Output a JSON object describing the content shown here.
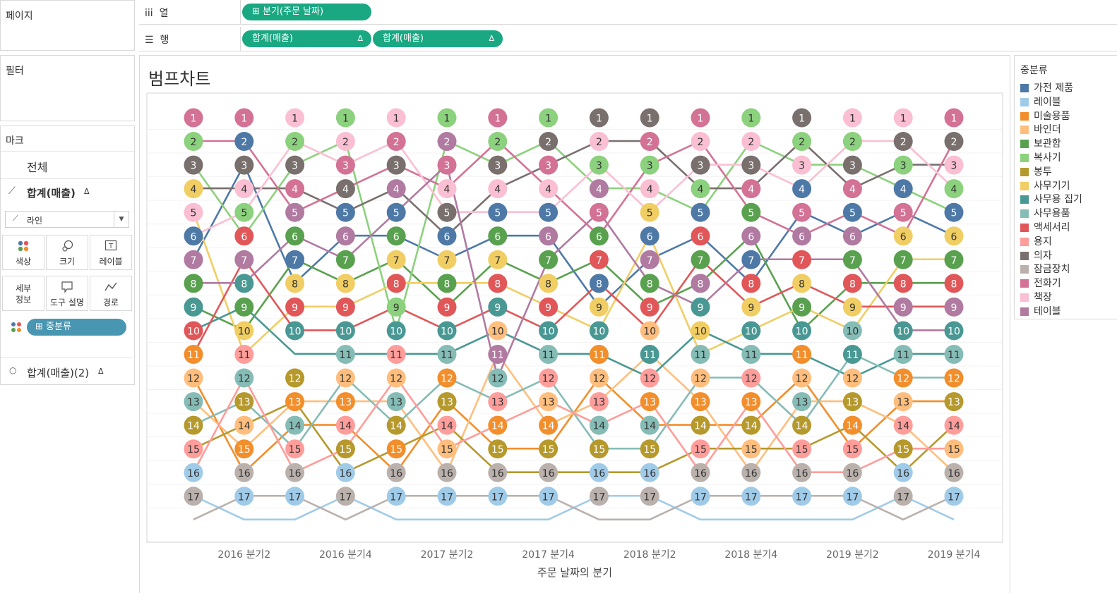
{
  "shelves": {
    "pages_label": "페이지",
    "columns_label": "열",
    "rows_label": "행",
    "columns_pill": "분기(주문 날짜)",
    "rows_pill_1": "합계(매출)",
    "rows_pill_2": "합계(매출)",
    "delta": "Δ"
  },
  "filters_label": "필터",
  "marks": {
    "title": "마크",
    "all_label": "전체",
    "measure_label": "합계(매출)",
    "measure2_label": "합계(매출)(2)",
    "delta": "Δ",
    "mark_type": "라인",
    "buttons": [
      "색상",
      "크기",
      "레이블",
      "세부\n정보",
      "도구 설명",
      "경로"
    ],
    "color_pill": "중분류"
  },
  "legend": {
    "title": "중분류",
    "items": [
      {
        "name": "가전 제품",
        "color": "#4e79a7"
      },
      {
        "name": "레이블",
        "color": "#a0cbe8"
      },
      {
        "name": "미술용품",
        "color": "#f28e2b"
      },
      {
        "name": "바인더",
        "color": "#ffbe7d"
      },
      {
        "name": "보관함",
        "color": "#59a14f"
      },
      {
        "name": "복사기",
        "color": "#8cd17d"
      },
      {
        "name": "봉투",
        "color": "#b6992d"
      },
      {
        "name": "사무기기",
        "color": "#f1ce63"
      },
      {
        "name": "사무용 집기",
        "color": "#499894"
      },
      {
        "name": "사무용품",
        "color": "#86bcb6"
      },
      {
        "name": "액세서리",
        "color": "#e15759"
      },
      {
        "name": "용지",
        "color": "#ff9d9a"
      },
      {
        "name": "의자",
        "color": "#79706e"
      },
      {
        "name": "잠금장치",
        "color": "#bab0ac"
      },
      {
        "name": "전화기",
        "color": "#d37295"
      },
      {
        "name": "책장",
        "color": "#fabfd2"
      },
      {
        "name": "테이블",
        "color": "#b07aa1"
      }
    ]
  },
  "chart_data": {
    "type": "line",
    "title": "범프차트",
    "xlabel": "주문 날짜의 분기",
    "ylabel": "",
    "y_reversed": true,
    "ylim": [
      1,
      17
    ],
    "x": [
      "2016 분기1",
      "2016 분기2",
      "2016 분기3",
      "2016 분기4",
      "2017 분기1",
      "2017 분기2",
      "2017 분기3",
      "2017 분기4",
      "2018 분기1",
      "2018 분기2",
      "2018 분기3",
      "2018 분기4",
      "2019 분기1",
      "2019 분기2",
      "2019 분기3",
      "2019 분기4"
    ],
    "x_tick_labels": [
      "2016 분기2",
      "2016 분기4",
      "2017 분기2",
      "2017 분기4",
      "2018 분기2",
      "2018 분기4",
      "2019 분기2",
      "2019 분기4"
    ],
    "series": [
      {
        "name": "가전 제품",
        "values": [
          6,
          2,
          7,
          5,
          5,
          6,
          5,
          5,
          8,
          6,
          5,
          7,
          4,
          5,
          4,
          5
        ]
      },
      {
        "name": "레이블",
        "values": [
          16,
          17,
          17,
          16,
          17,
          17,
          17,
          17,
          16,
          16,
          17,
          17,
          17,
          17,
          16,
          17
        ]
      },
      {
        "name": "미술용품",
        "values": [
          11,
          15,
          13,
          13,
          15,
          12,
          14,
          14,
          11,
          13,
          13,
          13,
          11,
          14,
          12,
          12
        ]
      },
      {
        "name": "바인더",
        "values": [
          12,
          14,
          12,
          12,
          12,
          15,
          10,
          13,
          12,
          10,
          12,
          15,
          12,
          12,
          13,
          15
        ]
      },
      {
        "name": "보관함",
        "values": [
          8,
          9,
          6,
          7,
          6,
          8,
          6,
          7,
          6,
          8,
          7,
          5,
          9,
          7,
          7,
          7
        ]
      },
      {
        "name": "복사기",
        "values": [
          2,
          5,
          2,
          1,
          9,
          1,
          2,
          1,
          3,
          3,
          4,
          1,
          2,
          2,
          3,
          4
        ]
      },
      {
        "name": "봉투",
        "values": [
          14,
          13,
          12,
          15,
          14,
          13,
          15,
          15,
          15,
          15,
          14,
          14,
          14,
          13,
          15,
          13
        ]
      },
      {
        "name": "사무기기",
        "values": [
          4,
          10,
          8,
          8,
          7,
          7,
          7,
          8,
          9,
          5,
          10,
          9,
          8,
          9,
          6,
          6
        ]
      },
      {
        "name": "사무용 집기",
        "values": [
          9,
          8,
          10,
          10,
          10,
          10,
          9,
          10,
          10,
          11,
          9,
          10,
          10,
          11,
          10,
          10
        ]
      },
      {
        "name": "사무용품",
        "values": [
          13,
          12,
          14,
          11,
          13,
          11,
          12,
          11,
          14,
          14,
          11,
          11,
          13,
          10,
          11,
          11
        ]
      },
      {
        "name": "액세서리",
        "values": [
          10,
          6,
          9,
          9,
          8,
          9,
          8,
          9,
          7,
          9,
          6,
          8,
          7,
          8,
          8,
          8
        ]
      },
      {
        "name": "용지",
        "values": [
          15,
          11,
          15,
          14,
          11,
          14,
          13,
          12,
          13,
          12,
          15,
          12,
          15,
          15,
          14,
          14
        ]
      },
      {
        "name": "의자",
        "values": [
          3,
          3,
          3,
          4,
          3,
          5,
          3,
          2,
          1,
          1,
          3,
          3,
          1,
          3,
          2,
          2
        ]
      },
      {
        "name": "잠금장치",
        "values": [
          17,
          16,
          16,
          17,
          16,
          16,
          16,
          16,
          17,
          17,
          16,
          16,
          16,
          16,
          17,
          16
        ]
      },
      {
        "name": "전화기",
        "values": [
          1,
          1,
          4,
          3,
          2,
          3,
          1,
          3,
          5,
          2,
          1,
          4,
          5,
          4,
          5,
          1
        ]
      },
      {
        "name": "책장",
        "values": [
          5,
          4,
          1,
          2,
          1,
          4,
          4,
          4,
          2,
          4,
          2,
          2,
          3,
          1,
          1,
          3
        ]
      },
      {
        "name": "테이블",
        "values": [
          7,
          7,
          5,
          6,
          4,
          2,
          11,
          6,
          4,
          7,
          8,
          6,
          6,
          6,
          9,
          9
        ]
      }
    ]
  }
}
